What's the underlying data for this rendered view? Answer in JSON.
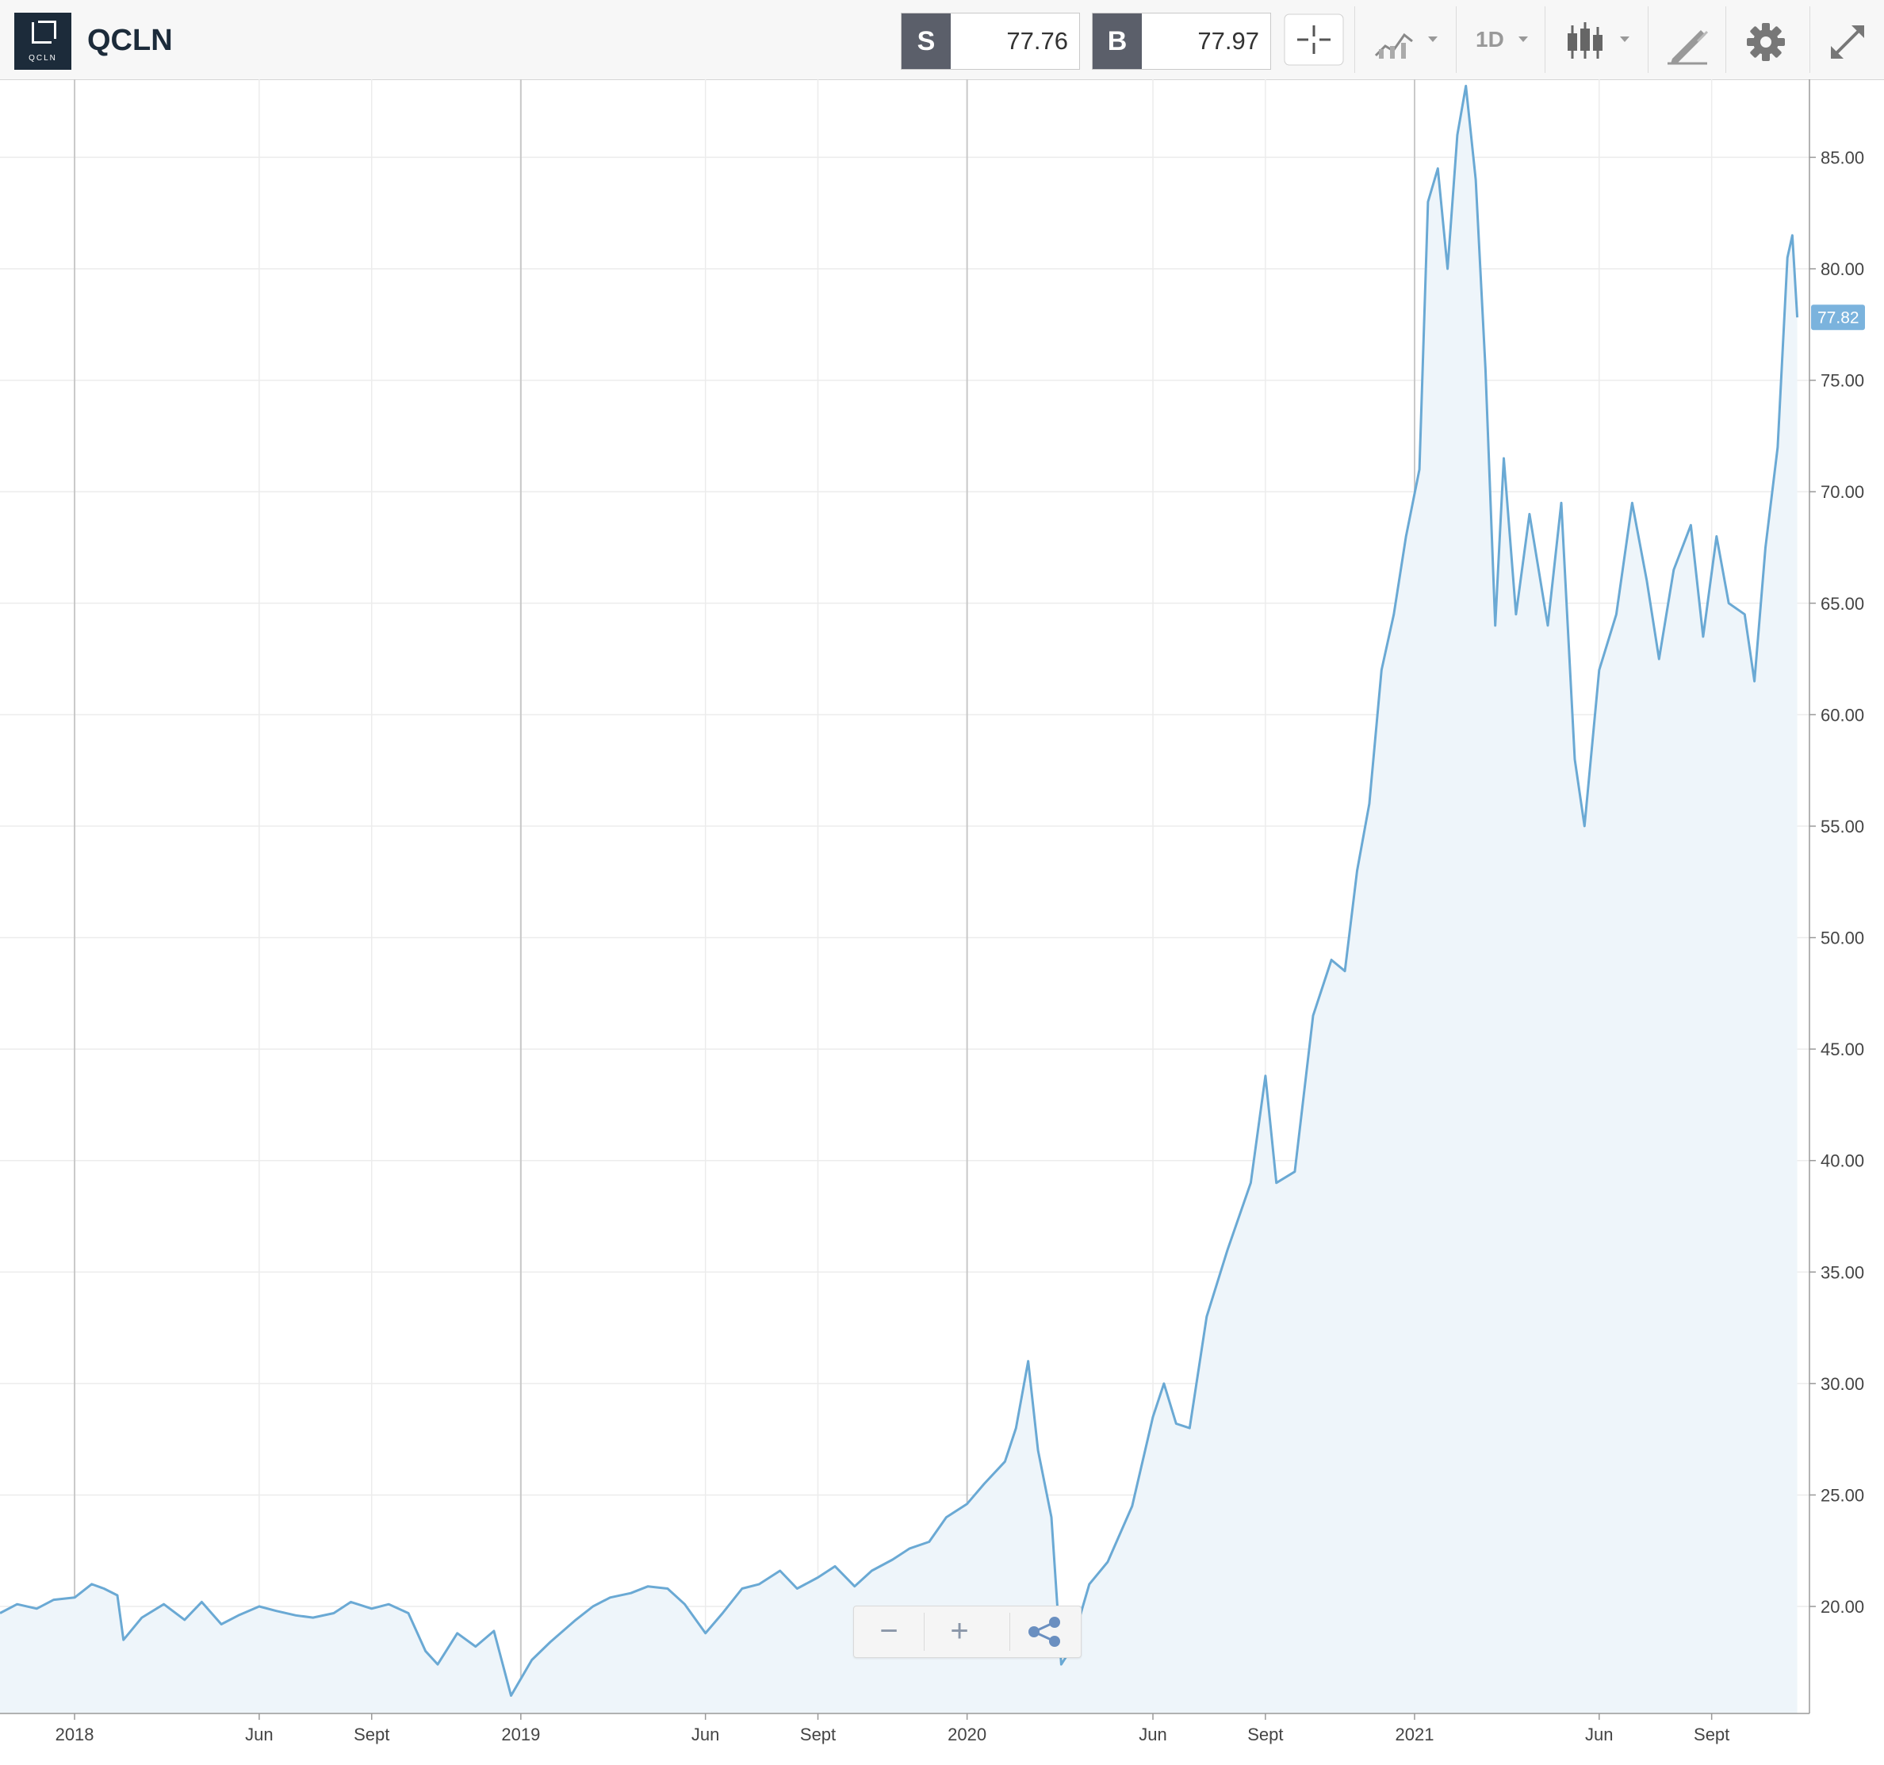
{
  "toolbar": {
    "ticker": "QCLN",
    "logo_text": "QCLN",
    "sell": {
      "label": "S",
      "value": "77.76"
    },
    "buy": {
      "label": "B",
      "value": "77.97"
    },
    "interval": "1D"
  },
  "controls": {
    "zoom_out": "−",
    "zoom_in": "+"
  },
  "colors": {
    "line": "#6aa9d4",
    "fill": "#eef5fa",
    "price_tag": "#7bb3dd",
    "grid": "#ececec"
  },
  "chart_data": {
    "type": "area",
    "title": "",
    "xlabel": "",
    "ylabel": "",
    "ylim": [
      15.2,
      88.5
    ],
    "yticks": [
      20,
      25,
      30,
      35,
      40,
      45,
      50,
      55,
      60,
      65,
      70,
      75,
      80,
      85
    ],
    "ytick_labels": [
      "20.00",
      "25.00",
      "30.00",
      "35.00",
      "40.00",
      "45.00",
      "50.00",
      "55.00",
      "60.00",
      "65.00",
      "70.00",
      "75.00",
      "80.00",
      "85.00"
    ],
    "x_range": [
      "2017-11-01",
      "2021-11-20"
    ],
    "xticks": [
      {
        "date": "2018-01-01",
        "label": "2018",
        "major": true
      },
      {
        "date": "2018-06-01",
        "label": "Jun",
        "major": false
      },
      {
        "date": "2018-09-01",
        "label": "Sept",
        "major": false
      },
      {
        "date": "2019-01-01",
        "label": "2019",
        "major": true
      },
      {
        "date": "2019-06-01",
        "label": "Jun",
        "major": false
      },
      {
        "date": "2019-09-01",
        "label": "Sept",
        "major": false
      },
      {
        "date": "2020-01-01",
        "label": "2020",
        "major": true
      },
      {
        "date": "2020-06-01",
        "label": "Jun",
        "major": false
      },
      {
        "date": "2020-09-01",
        "label": "Sept",
        "major": false
      },
      {
        "date": "2021-01-01",
        "label": "2021",
        "major": true
      },
      {
        "date": "2021-06-01",
        "label": "Jun",
        "major": false
      },
      {
        "date": "2021-09-01",
        "label": "Sept",
        "major": false
      }
    ],
    "last_price": 77.82,
    "last_price_label": "77.82",
    "series": [
      {
        "points": [
          [
            "2017-11-01",
            19.7
          ],
          [
            "2017-11-15",
            20.1
          ],
          [
            "2017-12-01",
            19.9
          ],
          [
            "2017-12-15",
            20.3
          ],
          [
            "2018-01-01",
            20.4
          ],
          [
            "2018-01-15",
            21.0
          ],
          [
            "2018-01-25",
            20.8
          ],
          [
            "2018-02-05",
            20.5
          ],
          [
            "2018-02-10",
            18.5
          ],
          [
            "2018-02-25",
            19.5
          ],
          [
            "2018-03-15",
            20.1
          ],
          [
            "2018-04-01",
            19.4
          ],
          [
            "2018-04-15",
            20.2
          ],
          [
            "2018-05-01",
            19.2
          ],
          [
            "2018-05-15",
            19.6
          ],
          [
            "2018-06-01",
            20.0
          ],
          [
            "2018-06-15",
            19.8
          ],
          [
            "2018-07-01",
            19.6
          ],
          [
            "2018-07-15",
            19.5
          ],
          [
            "2018-08-01",
            19.7
          ],
          [
            "2018-08-15",
            20.2
          ],
          [
            "2018-09-01",
            19.9
          ],
          [
            "2018-09-15",
            20.1
          ],
          [
            "2018-10-01",
            19.7
          ],
          [
            "2018-10-15",
            18.0
          ],
          [
            "2018-10-25",
            17.4
          ],
          [
            "2018-11-10",
            18.8
          ],
          [
            "2018-11-25",
            18.2
          ],
          [
            "2018-12-10",
            18.9
          ],
          [
            "2018-12-24",
            16.0
          ],
          [
            "2019-01-10",
            17.6
          ],
          [
            "2019-01-25",
            18.4
          ],
          [
            "2019-02-15",
            19.4
          ],
          [
            "2019-03-01",
            20.0
          ],
          [
            "2019-03-15",
            20.4
          ],
          [
            "2019-04-01",
            20.6
          ],
          [
            "2019-04-15",
            20.9
          ],
          [
            "2019-05-01",
            20.8
          ],
          [
            "2019-05-15",
            20.1
          ],
          [
            "2019-06-01",
            18.8
          ],
          [
            "2019-06-15",
            19.7
          ],
          [
            "2019-07-01",
            20.8
          ],
          [
            "2019-07-15",
            21.0
          ],
          [
            "2019-08-01",
            21.6
          ],
          [
            "2019-08-15",
            20.8
          ],
          [
            "2019-09-01",
            21.3
          ],
          [
            "2019-09-15",
            21.8
          ],
          [
            "2019-10-01",
            20.9
          ],
          [
            "2019-10-15",
            21.6
          ],
          [
            "2019-11-01",
            22.1
          ],
          [
            "2019-11-15",
            22.6
          ],
          [
            "2019-12-01",
            22.9
          ],
          [
            "2019-12-15",
            24.0
          ],
          [
            "2020-01-01",
            24.6
          ],
          [
            "2020-01-15",
            25.5
          ],
          [
            "2020-02-01",
            26.5
          ],
          [
            "2020-02-10",
            28.0
          ],
          [
            "2020-02-20",
            31.0
          ],
          [
            "2020-02-28",
            27.0
          ],
          [
            "2020-03-10",
            24.0
          ],
          [
            "2020-03-18",
            17.4
          ],
          [
            "2020-03-25",
            18.0
          ],
          [
            "2020-04-10",
            21.0
          ],
          [
            "2020-04-25",
            22.0
          ],
          [
            "2020-05-15",
            24.5
          ],
          [
            "2020-06-01",
            28.5
          ],
          [
            "2020-06-10",
            30.0
          ],
          [
            "2020-06-20",
            28.2
          ],
          [
            "2020-07-01",
            28.0
          ],
          [
            "2020-07-15",
            33.0
          ],
          [
            "2020-08-01",
            36.0
          ],
          [
            "2020-08-20",
            39.0
          ],
          [
            "2020-09-01",
            43.8
          ],
          [
            "2020-09-10",
            39.0
          ],
          [
            "2020-09-25",
            39.5
          ],
          [
            "2020-10-10",
            46.5
          ],
          [
            "2020-10-25",
            49.0
          ],
          [
            "2020-11-05",
            48.5
          ],
          [
            "2020-11-15",
            53.0
          ],
          [
            "2020-11-25",
            56.0
          ],
          [
            "2020-12-05",
            62.0
          ],
          [
            "2020-12-15",
            64.5
          ],
          [
            "2020-12-25",
            68.0
          ],
          [
            "2021-01-05",
            71.0
          ],
          [
            "2021-01-12",
            83.0
          ],
          [
            "2021-01-20",
            84.5
          ],
          [
            "2021-01-28",
            80.0
          ],
          [
            "2021-02-05",
            86.0
          ],
          [
            "2021-02-12",
            88.2
          ],
          [
            "2021-02-20",
            84.0
          ],
          [
            "2021-02-28",
            75.5
          ],
          [
            "2021-03-08",
            64.0
          ],
          [
            "2021-03-15",
            71.5
          ],
          [
            "2021-03-25",
            64.5
          ],
          [
            "2021-04-05",
            69.0
          ],
          [
            "2021-04-20",
            64.0
          ],
          [
            "2021-05-01",
            69.5
          ],
          [
            "2021-05-12",
            58.0
          ],
          [
            "2021-05-20",
            55.0
          ],
          [
            "2021-06-01",
            62.0
          ],
          [
            "2021-06-15",
            64.5
          ],
          [
            "2021-06-28",
            69.5
          ],
          [
            "2021-07-10",
            66.0
          ],
          [
            "2021-07-20",
            62.5
          ],
          [
            "2021-08-01",
            66.5
          ],
          [
            "2021-08-15",
            68.5
          ],
          [
            "2021-08-25",
            63.5
          ],
          [
            "2021-09-05",
            68.0
          ],
          [
            "2021-09-15",
            65.0
          ],
          [
            "2021-09-28",
            64.5
          ],
          [
            "2021-10-06",
            61.5
          ],
          [
            "2021-10-15",
            67.5
          ],
          [
            "2021-10-25",
            72.0
          ],
          [
            "2021-11-02",
            80.5
          ],
          [
            "2021-11-06",
            81.5
          ],
          [
            "2021-11-10",
            77.82
          ]
        ]
      }
    ]
  }
}
